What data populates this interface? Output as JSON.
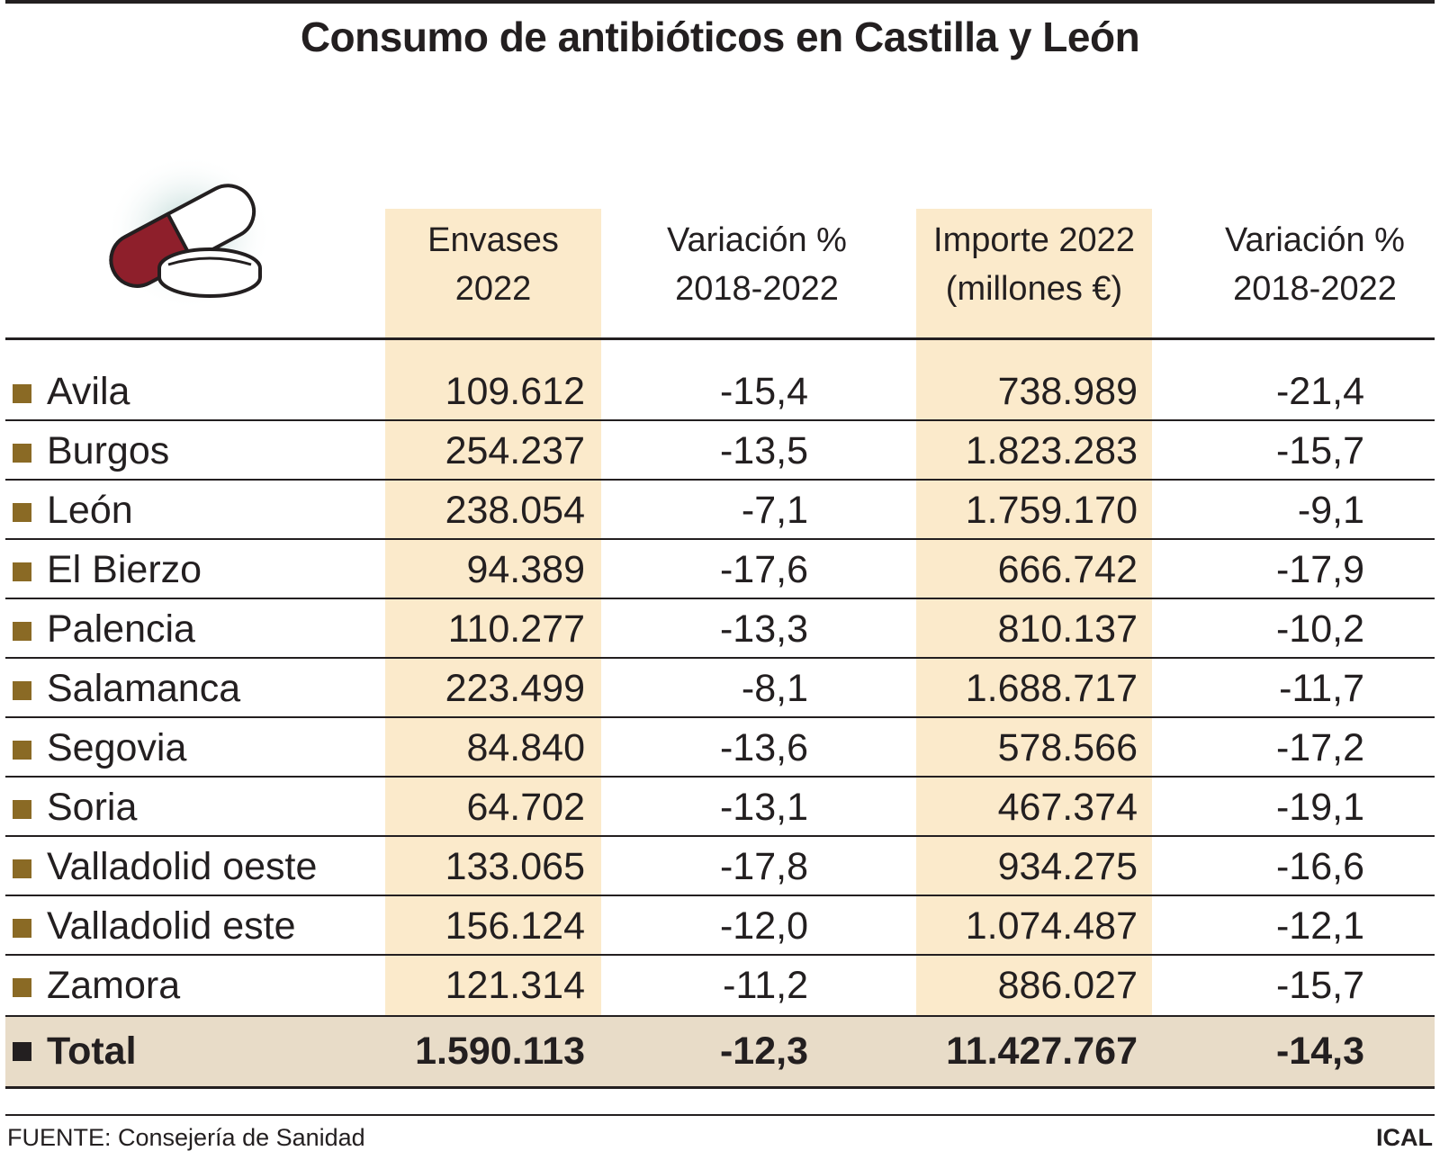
{
  "title": "Consumo de antibióticos en Castilla y León",
  "illustration_icon": "pill-capsule-icon",
  "colors": {
    "band": "#fbeacb",
    "total_band": "#e8dcc8",
    "marker": "#8a6a25",
    "total_marker": "#231f20",
    "text": "#231f20"
  },
  "chart_data": {
    "type": "table",
    "title": "Consumo de antibióticos en Castilla y León",
    "columns": [
      {
        "line1": "Envases",
        "line2": "2022"
      },
      {
        "line1": "Variación %",
        "line2": "2018-2022"
      },
      {
        "line1": "Importe 2022",
        "line2": "(millones €)"
      },
      {
        "line1": "Variación %",
        "line2": "2018-2022"
      }
    ],
    "rows": [
      {
        "name": "Avila",
        "envases": "109.612",
        "var_envases": "-15,4",
        "importe": "738.989",
        "var_importe": "-21,4"
      },
      {
        "name": "Burgos",
        "envases": "254.237",
        "var_envases": "-13,5",
        "importe": "1.823.283",
        "var_importe": "-15,7"
      },
      {
        "name": "León",
        "envases": "238.054",
        "var_envases": "-7,1",
        "importe": "1.759.170",
        "var_importe": "-9,1"
      },
      {
        "name": "El Bierzo",
        "envases": "94.389",
        "var_envases": "-17,6",
        "importe": "666.742",
        "var_importe": "-17,9"
      },
      {
        "name": "Palencia",
        "envases": "110.277",
        "var_envases": "-13,3",
        "importe": "810.137",
        "var_importe": "-10,2"
      },
      {
        "name": "Salamanca",
        "envases": "223.499",
        "var_envases": "-8,1",
        "importe": "1.688.717",
        "var_importe": "-11,7"
      },
      {
        "name": "Segovia",
        "envases": "84.840",
        "var_envases": "-13,6",
        "importe": "578.566",
        "var_importe": "-17,2"
      },
      {
        "name": "Soria",
        "envases": "64.702",
        "var_envases": "-13,1",
        "importe": "467.374",
        "var_importe": "-19,1"
      },
      {
        "name": "Valladolid oeste",
        "envases": "133.065",
        "var_envases": "-17,8",
        "importe": "934.275",
        "var_importe": "-16,6"
      },
      {
        "name": "Valladolid este",
        "envases": "156.124",
        "var_envases": "-12,0",
        "importe": "1.074.487",
        "var_importe": "-12,1"
      },
      {
        "name": "Zamora",
        "envases": "121.314",
        "var_envases": "-11,2",
        "importe": "886.027",
        "var_importe": "-15,7"
      }
    ],
    "total": {
      "name": "Total",
      "envases": "1.590.113",
      "var_envases": "-12,3",
      "importe": "11.427.767",
      "var_importe": "-14,3"
    }
  },
  "footer": {
    "source": "FUENTE: Consejería de Sanidad",
    "brand": "ICAL"
  }
}
